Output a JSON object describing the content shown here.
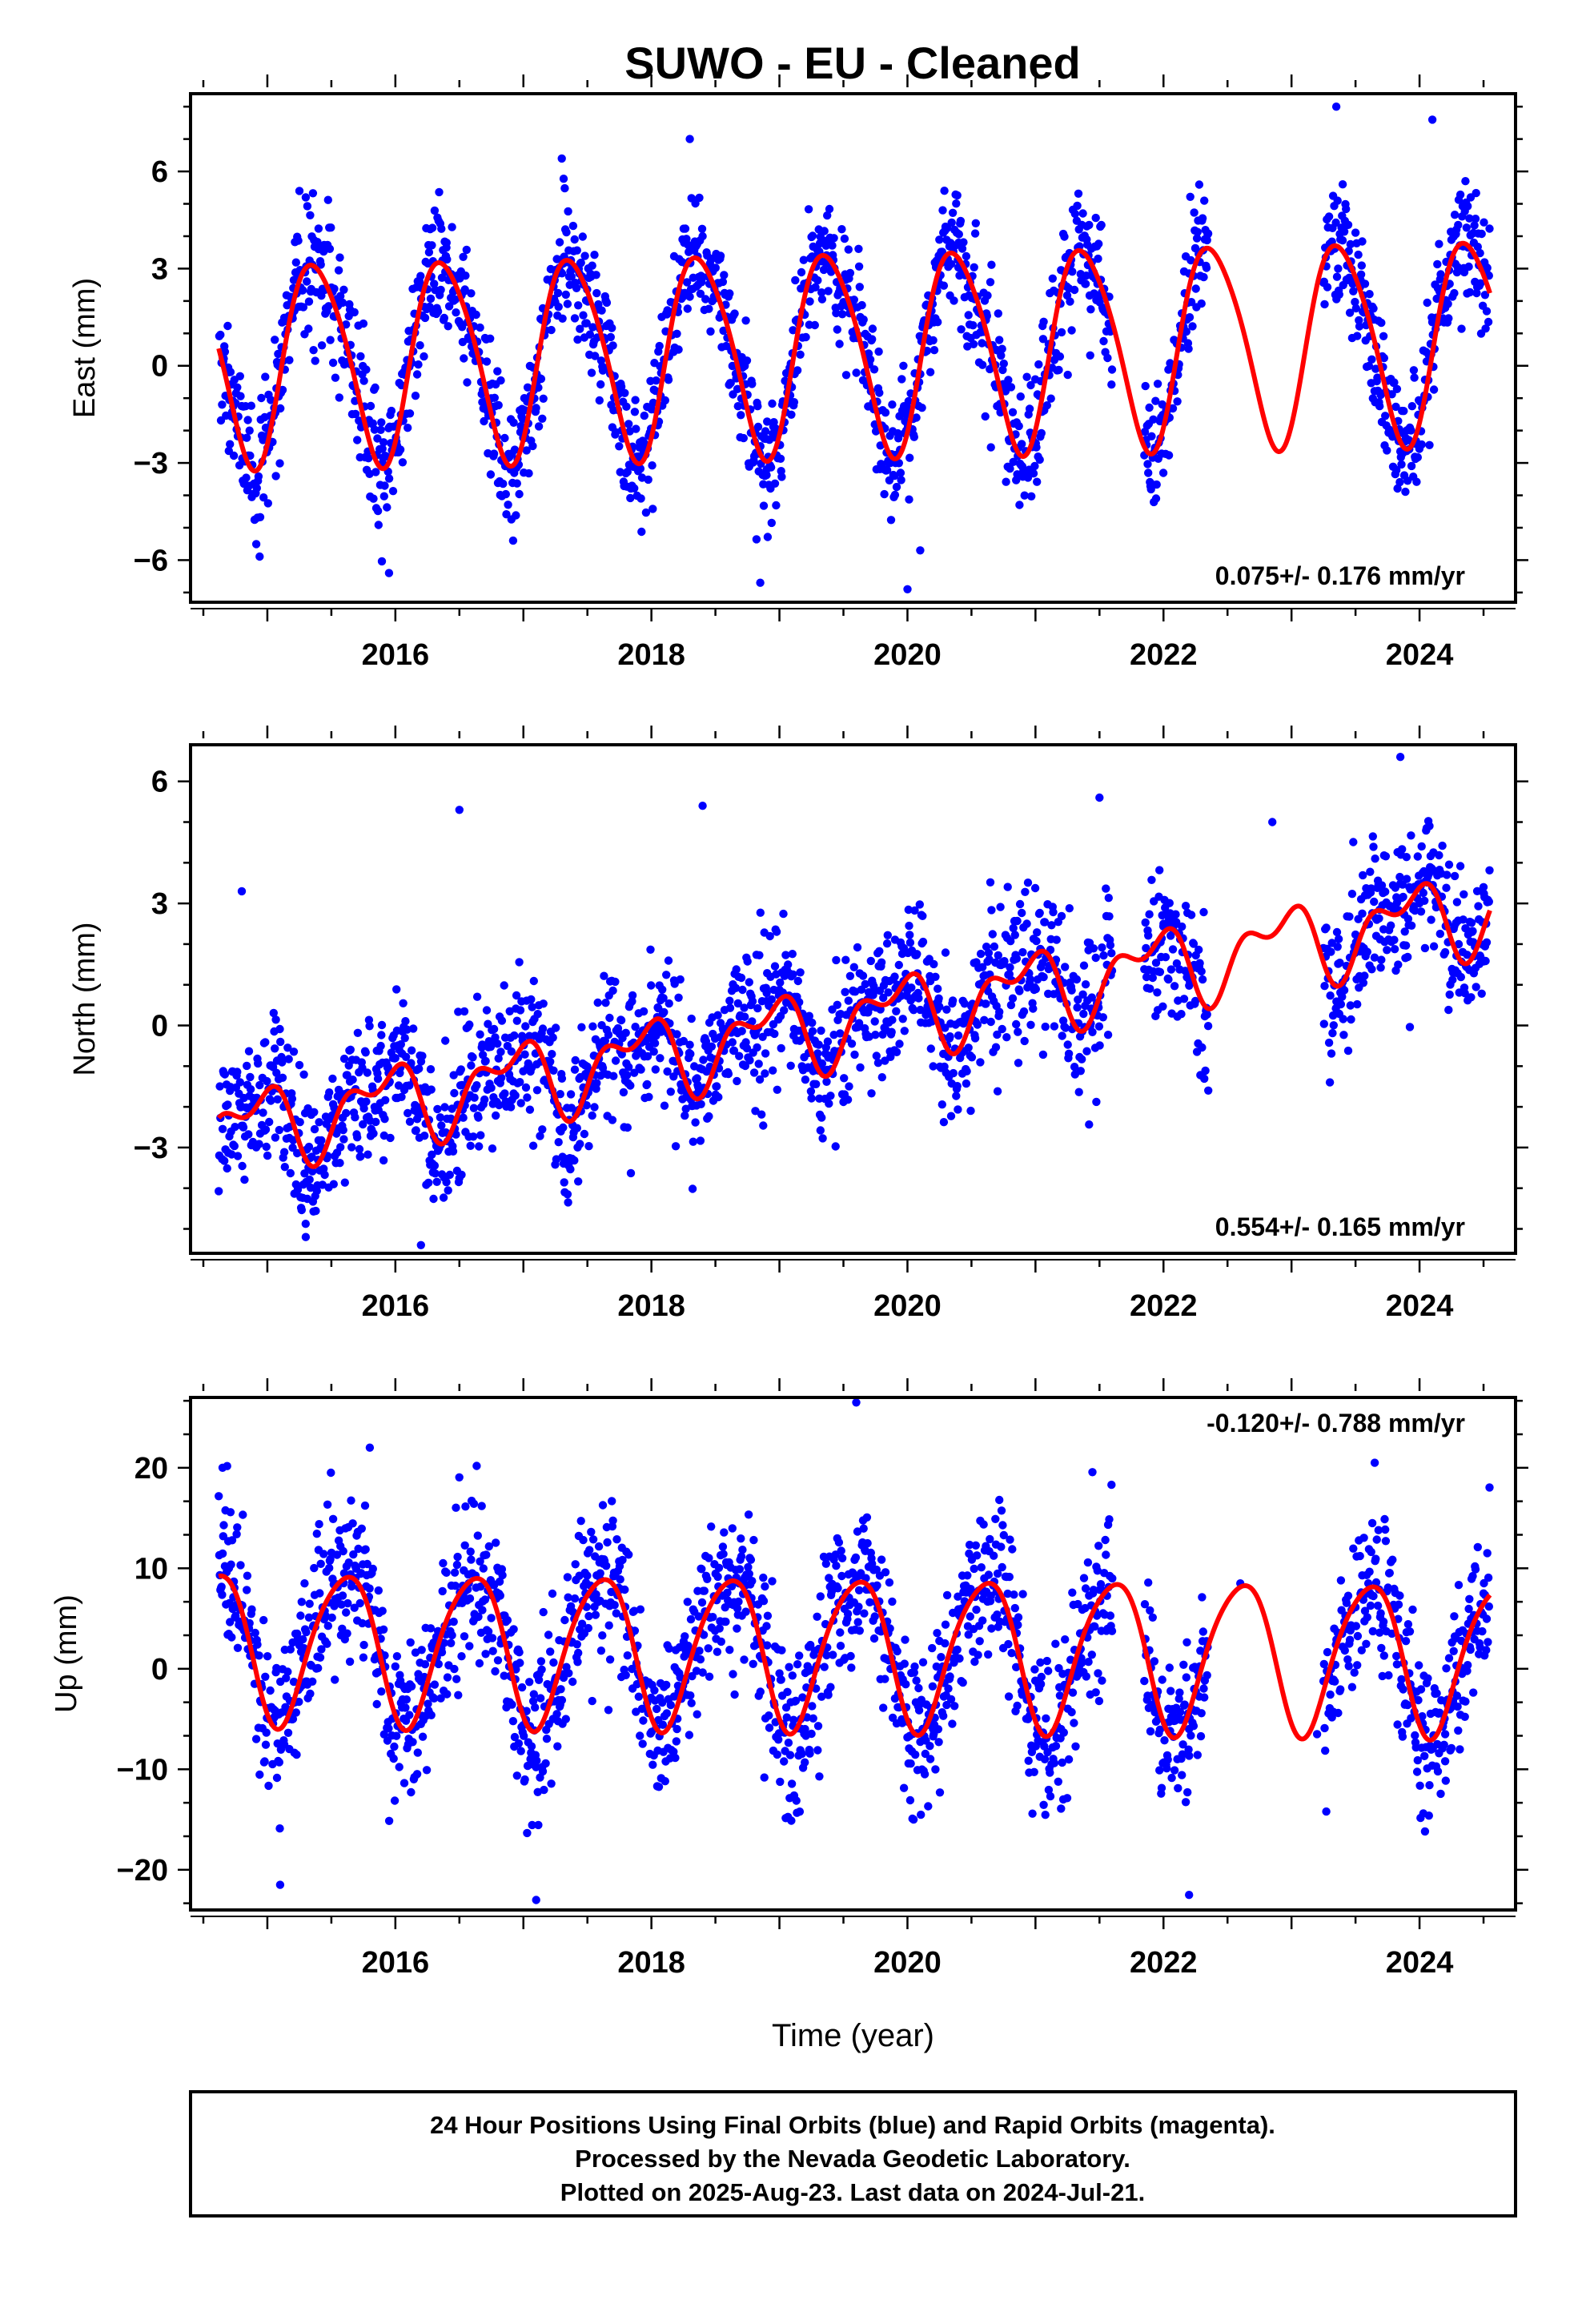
{
  "title": "SUWO  - EU - Cleaned",
  "chart_data": [
    {
      "type": "scatter",
      "name": "east",
      "ylabel": "East (mm)",
      "xlabel": "",
      "xlim": [
        2014.4,
        2024.75
      ],
      "ylim": [
        -7.3,
        8.4
      ],
      "xticks": [
        2016,
        2018,
        2020,
        2022,
        2024
      ],
      "yticks": [
        -6,
        -3,
        0,
        3,
        6
      ],
      "rate_label": "0.075+/- 0.176 mm/yr",
      "legend": "none",
      "grid": false,
      "model": {
        "t0": 2014.62,
        "t1": 2024.55,
        "offset": 0.5,
        "trend": 0.075,
        "ref_year": 2019.6,
        "annual_amp": 3.1,
        "annual_peak": 0.38,
        "semi_amp": 0.4,
        "semi_phase": 0.2
      },
      "data_segments": [
        [
          2014.62,
          2021.6
        ],
        [
          2021.85,
          2022.35
        ],
        [
          2023.25,
          2024.55
        ]
      ],
      "noise_sd": 1.0,
      "outliers": [
        [
          2018.85,
          -6.7
        ],
        [
          2020.0,
          -6.9
        ],
        [
          2015.95,
          -6.4
        ],
        [
          2020.1,
          -5.7
        ],
        [
          2018.3,
          7.0
        ],
        [
          2017.3,
          6.4
        ],
        [
          2023.35,
          8.0
        ],
        [
          2024.1,
          7.6
        ],
        [
          2015.3,
          5.2
        ]
      ],
      "sample_points": [
        [
          2014.7,
          -0.2
        ],
        [
          2015.4,
          3.6
        ],
        [
          2015.9,
          -3.0
        ],
        [
          2016.4,
          3.8
        ],
        [
          2016.9,
          -3.2
        ],
        [
          2017.4,
          3.9
        ],
        [
          2017.9,
          -2.8
        ],
        [
          2018.4,
          4.0
        ],
        [
          2018.9,
          -3.2
        ],
        [
          2019.4,
          3.9
        ],
        [
          2019.9,
          -2.8
        ],
        [
          2020.4,
          3.8
        ],
        [
          2021.4,
          3.9
        ],
        [
          2022.3,
          4.5
        ],
        [
          2023.4,
          5.6
        ],
        [
          2023.9,
          -2.0
        ],
        [
          2024.4,
          5.2
        ]
      ]
    },
    {
      "type": "scatter",
      "name": "north",
      "ylabel": "North (mm)",
      "xlabel": "",
      "xlim": [
        2014.4,
        2024.75
      ],
      "ylim": [
        -5.6,
        6.9
      ],
      "xticks": [
        2016,
        2018,
        2020,
        2022,
        2024
      ],
      "yticks": [
        -3,
        0,
        3,
        6
      ],
      "rate_label": "0.554+/- 0.165 mm/yr",
      "legend": "none",
      "grid": false,
      "model": {
        "t0": 2014.62,
        "t1": 2024.55,
        "offset": 0.15,
        "trend": 0.554,
        "ref_year": 2019.6,
        "annual_amp": 0.8,
        "annual_peak": 0.9,
        "semi_amp": 0.5,
        "semi_phase": 0.6
      },
      "data_segments": [
        [
          2014.62,
          2021.6
        ],
        [
          2021.85,
          2022.35
        ],
        [
          2023.25,
          2024.55
        ]
      ],
      "noise_sd": 0.9,
      "outliers": [
        [
          2014.8,
          3.3
        ],
        [
          2016.5,
          5.3
        ],
        [
          2018.4,
          5.4
        ],
        [
          2021.5,
          5.6
        ],
        [
          2022.85,
          5.0
        ],
        [
          2023.85,
          6.6
        ],
        [
          2016.2,
          -5.4
        ],
        [
          2015.3,
          -5.2
        ],
        [
          2023.3,
          -1.4
        ],
        [
          2022.35,
          -1.6
        ]
      ],
      "sample_points": [
        [
          2014.8,
          -2.0
        ],
        [
          2015.3,
          -3.3
        ],
        [
          2016.0,
          -0.8
        ],
        [
          2016.9,
          -0.3
        ],
        [
          2017.9,
          0.3
        ],
        [
          2018.9,
          0.8
        ],
        [
          2019.9,
          1.2
        ],
        [
          2020.9,
          1.8
        ],
        [
          2022.0,
          2.5
        ],
        [
          2023.9,
          3.6
        ],
        [
          2024.5,
          3.4
        ]
      ]
    },
    {
      "type": "scatter",
      "name": "up",
      "ylabel": "Up (mm)",
      "xlabel": "Time (year)",
      "xlim": [
        2014.4,
        2024.75
      ],
      "ylim": [
        -24,
        27
      ],
      "xticks": [
        2016,
        2018,
        2020,
        2022,
        2024
      ],
      "yticks": [
        -20,
        -10,
        0,
        10,
        20
      ],
      "rate_label": "-0.120+/- 0.788 mm/yr",
      "legend": "none",
      "grid": false,
      "model": {
        "t0": 2014.62,
        "t1": 2024.55,
        "offset": 1.8,
        "trend": -0.12,
        "ref_year": 2019.6,
        "annual_amp": 7.5,
        "annual_peak": 0.6,
        "semi_amp": 1.0,
        "semi_phase": 0.3
      },
      "data_segments": [
        [
          2014.62,
          2021.6
        ],
        [
          2021.85,
          2022.35
        ],
        [
          2023.25,
          2024.55
        ]
      ],
      "noise_sd": 4.0,
      "outliers": [
        [
          2019.6,
          26.5
        ],
        [
          2015.8,
          22.0
        ],
        [
          2022.2,
          -22.5
        ],
        [
          2017.1,
          -23.0
        ],
        [
          2015.1,
          -21.5
        ],
        [
          2023.65,
          20.5
        ],
        [
          2014.65,
          20.0
        ]
      ],
      "sample_points": [
        [
          2014.7,
          10.0
        ],
        [
          2015.2,
          -5.0
        ],
        [
          2015.6,
          9.5
        ],
        [
          2016.2,
          -5.5
        ],
        [
          2016.6,
          9.5
        ],
        [
          2017.2,
          -5.5
        ],
        [
          2017.6,
          9.5
        ],
        [
          2018.2,
          -6.0
        ],
        [
          2018.6,
          9.0
        ],
        [
          2019.2,
          -6.0
        ],
        [
          2019.6,
          9.0
        ],
        [
          2020.2,
          -6.0
        ],
        [
          2020.6,
          9.0
        ],
        [
          2021.2,
          -6.0
        ],
        [
          2021.6,
          9.0
        ],
        [
          2022.2,
          -6.0
        ],
        [
          2022.6,
          8.5
        ],
        [
          2023.2,
          -6.5
        ],
        [
          2023.6,
          8.5
        ],
        [
          2024.2,
          -6.5
        ],
        [
          2024.5,
          7.5
        ]
      ]
    }
  ],
  "colors": {
    "data": "#0000ff",
    "model": "#ff0000",
    "frame": "#000000"
  },
  "footer": {
    "line1": "24 Hour Positions Using Final Orbits (blue) and Rapid Orbits (magenta).",
    "line2": "Processed by the Nevada Geodetic Laboratory.",
    "line3": "Plotted on 2025-Aug-23. Last data on 2024-Jul-21."
  }
}
